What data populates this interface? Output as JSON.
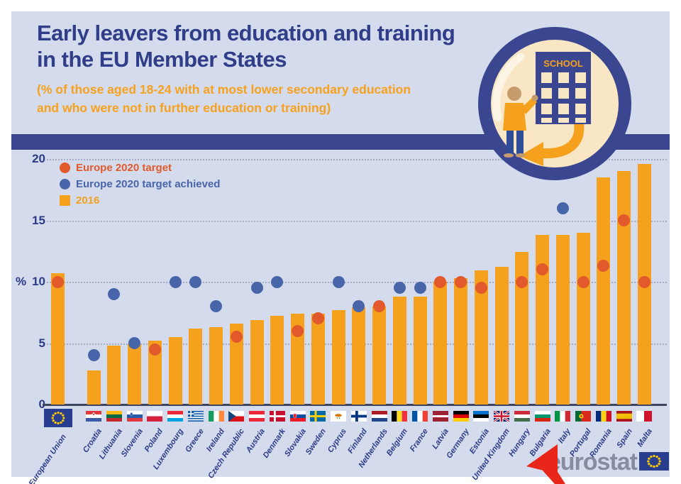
{
  "header": {
    "title_line1": "Early leavers from education and training",
    "title_line2": "in the EU Member States",
    "subtitle_line1": "(% of those aged 18-24 with at most lower secondary education",
    "subtitle_line2": "and who were not in further education or training)"
  },
  "badge": {
    "school_sign": "SCHOOL"
  },
  "legend": {
    "target": "Europe 2020 target",
    "achieved": "Europe 2020 target achieved",
    "year": "2016"
  },
  "axis": {
    "unit_label": "%",
    "ticks": [
      0,
      5,
      10,
      15,
      20
    ]
  },
  "colors": {
    "background": "#D3DBEC",
    "band_navy": "#3B4690",
    "title_navy": "#303D88",
    "orange": "#F7A11C",
    "bar_orange": "#F6A11D",
    "target_dot": "#E2592B",
    "achieved_dot": "#4765A8",
    "gridline": "#9EA6BC",
    "eurostat_gray": "#868DA0",
    "arrow_red": "#E8261A"
  },
  "chart_data": {
    "type": "bar",
    "title": "Early leavers from education and training in the EU Member States",
    "ylabel": "%",
    "ylim": [
      0,
      20
    ],
    "gridlines": [
      5,
      10,
      15,
      20
    ],
    "legend_position": "top-left",
    "categories": [
      "European Union",
      "Croatia",
      "Lithuania",
      "Slovenia",
      "Poland",
      "Luxembourg",
      "Greece",
      "Ireland",
      "Czech Republic",
      "Austria",
      "Denmark",
      "Slovakia",
      "Sweden",
      "Cyprus",
      "Finland",
      "Netherlands",
      "Belgium",
      "France",
      "Latvia",
      "Germany",
      "Estonia",
      "United Kingdom",
      "Hungary",
      "Bulgaria",
      "Italy",
      "Portugal",
      "Romania",
      "Spain",
      "Malta"
    ],
    "flags": [
      "eu",
      "croatia",
      "lithuania",
      "slovenia",
      "poland",
      "luxembourg",
      "greece",
      "ireland",
      "czechia",
      "austria",
      "denmark",
      "slovakia",
      "sweden",
      "cyprus",
      "finland",
      "netherlands",
      "belgium",
      "france",
      "latvia",
      "germany",
      "estonia",
      "uk",
      "hungary",
      "bulgaria",
      "italy",
      "portugal",
      "romania",
      "spain",
      "malta"
    ],
    "series": [
      {
        "name": "2016",
        "values": [
          10.7,
          2.8,
          4.8,
          4.9,
          5.2,
          5.5,
          6.2,
          6.3,
          6.6,
          6.9,
          7.2,
          7.4,
          7.4,
          7.7,
          7.9,
          8.0,
          8.8,
          8.8,
          10.0,
          10.3,
          10.9,
          11.2,
          12.4,
          13.8,
          13.8,
          14.0,
          18.5,
          19.0,
          19.6
        ]
      },
      {
        "name": "Europe 2020 target",
        "values": [
          10,
          4,
          9,
          5,
          4.5,
          10,
          10,
          8,
          5.5,
          9.5,
          10,
          6,
          7,
          10,
          8,
          8,
          9.5,
          9.5,
          10,
          10,
          9.5,
          null,
          10,
          11,
          16,
          10,
          11.3,
          15,
          10
        ]
      },
      {
        "name": "Europe 2020 target achieved",
        "values": [
          false,
          true,
          true,
          true,
          false,
          true,
          true,
          true,
          false,
          true,
          true,
          false,
          false,
          true,
          true,
          false,
          true,
          true,
          false,
          false,
          false,
          null,
          false,
          false,
          true,
          false,
          false,
          false,
          false
        ]
      }
    ]
  },
  "footer": {
    "logo_text": "eurostat"
  }
}
